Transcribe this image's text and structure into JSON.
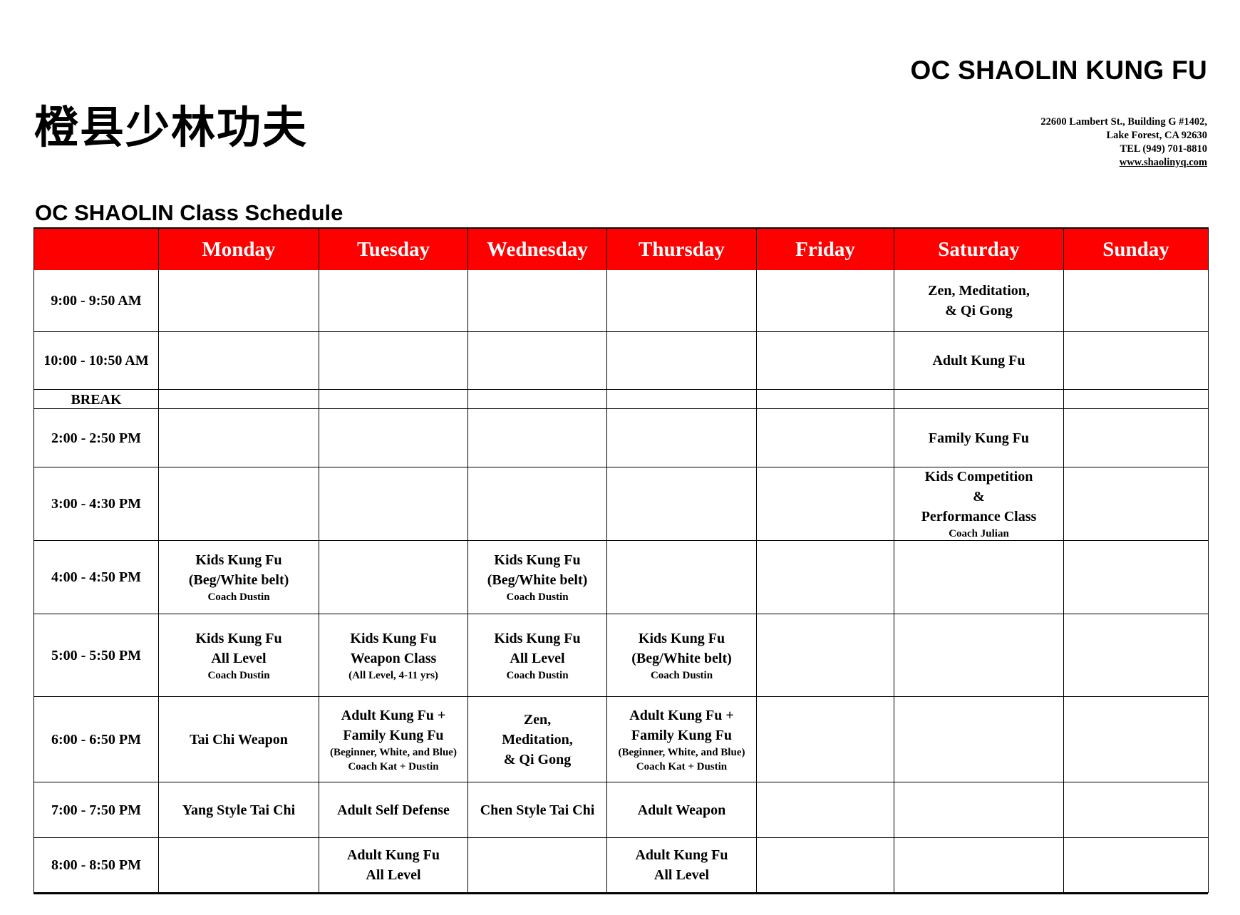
{
  "header": {
    "brand": "OC SHAOLIN KUNG FU",
    "chinese_name": "橙县少林功夫",
    "address_line1": "22600 Lambert St., Building G #1402,",
    "address_line2": "Lake Forest, CA 92630",
    "phone": "TEL (949) 701-8810",
    "website": "www.shaolinyq.com"
  },
  "schedule": {
    "title": "OC SHAOLIN Class Schedule",
    "header_color": "#ff0000",
    "days": [
      "Monday",
      "Tuesday",
      "Wednesday",
      "Thursday",
      "Friday",
      "Saturday",
      "Sunday"
    ],
    "rows": [
      {
        "time": "9:00 - 9:50 AM",
        "cells": [
          null,
          null,
          null,
          null,
          null,
          {
            "main": [
              "Zen, Meditation,",
              "& Qi Gong"
            ]
          },
          null
        ]
      },
      {
        "time": "10:00 - 10:50 AM",
        "cells": [
          null,
          null,
          null,
          null,
          null,
          {
            "main": [
              "Adult Kung Fu"
            ]
          },
          null
        ]
      },
      {
        "time": "BREAK",
        "cells": [
          null,
          null,
          null,
          null,
          null,
          null,
          null
        ]
      },
      {
        "time": "2:00 - 2:50 PM",
        "cells": [
          null,
          null,
          null,
          null,
          null,
          {
            "main": [
              "Family Kung Fu"
            ]
          },
          null
        ]
      },
      {
        "time": "3:00 - 4:30 PM",
        "cells": [
          null,
          null,
          null,
          null,
          null,
          {
            "main": [
              "Kids Competition",
              "&",
              "Performance Class"
            ],
            "note": [
              "Coach Julian"
            ]
          },
          null
        ]
      },
      {
        "time": "4:00 - 4:50 PM",
        "cells": [
          {
            "main": [
              "Kids Kung Fu",
              "(Beg/White belt)"
            ],
            "note": [
              "Coach Dustin"
            ]
          },
          null,
          {
            "main": [
              "Kids Kung Fu",
              "(Beg/White belt)"
            ],
            "note": [
              "Coach Dustin"
            ]
          },
          null,
          null,
          null,
          null
        ]
      },
      {
        "time": "5:00 - 5:50 PM",
        "cells": [
          {
            "main": [
              "Kids Kung Fu",
              "All Level"
            ],
            "note": [
              "Coach Dustin"
            ]
          },
          {
            "main": [
              "Kids Kung Fu",
              "Weapon Class"
            ],
            "note": [
              "(All Level, 4-11 yrs)"
            ]
          },
          {
            "main": [
              "Kids Kung Fu",
              "All Level"
            ],
            "note": [
              "Coach Dustin"
            ]
          },
          {
            "main": [
              "Kids Kung Fu",
              "(Beg/White belt)"
            ],
            "note": [
              "Coach Dustin"
            ]
          },
          null,
          null,
          null
        ]
      },
      {
        "time": "6:00 - 6:50 PM",
        "cells": [
          {
            "main": [
              "Tai Chi Weapon"
            ]
          },
          {
            "main": [
              "Adult Kung Fu +",
              "Family Kung Fu"
            ],
            "note": [
              "(Beginner, White, and Blue)",
              "Coach Kat + Dustin"
            ]
          },
          {
            "main": [
              "Zen,",
              "Meditation,",
              "& Qi Gong"
            ]
          },
          {
            "main": [
              "Adult Kung Fu +",
              "Family Kung Fu"
            ],
            "note": [
              "(Beginner, White, and Blue)",
              "Coach Kat + Dustin"
            ]
          },
          null,
          null,
          null
        ]
      },
      {
        "time": "7:00 - 7:50 PM",
        "cells": [
          {
            "main": [
              "Yang Style Tai Chi"
            ]
          },
          {
            "main": [
              "Adult Self Defense"
            ]
          },
          {
            "main": [
              "Chen Style Tai Chi"
            ]
          },
          {
            "main": [
              "Adult Weapon"
            ]
          },
          null,
          null,
          null
        ]
      },
      {
        "time": "8:00 - 8:50 PM",
        "cells": [
          null,
          {
            "main": [
              "Adult Kung Fu",
              "All Level"
            ]
          },
          null,
          {
            "main": [
              "Adult Kung Fu",
              "All Level"
            ]
          },
          null,
          null,
          null
        ]
      }
    ]
  }
}
